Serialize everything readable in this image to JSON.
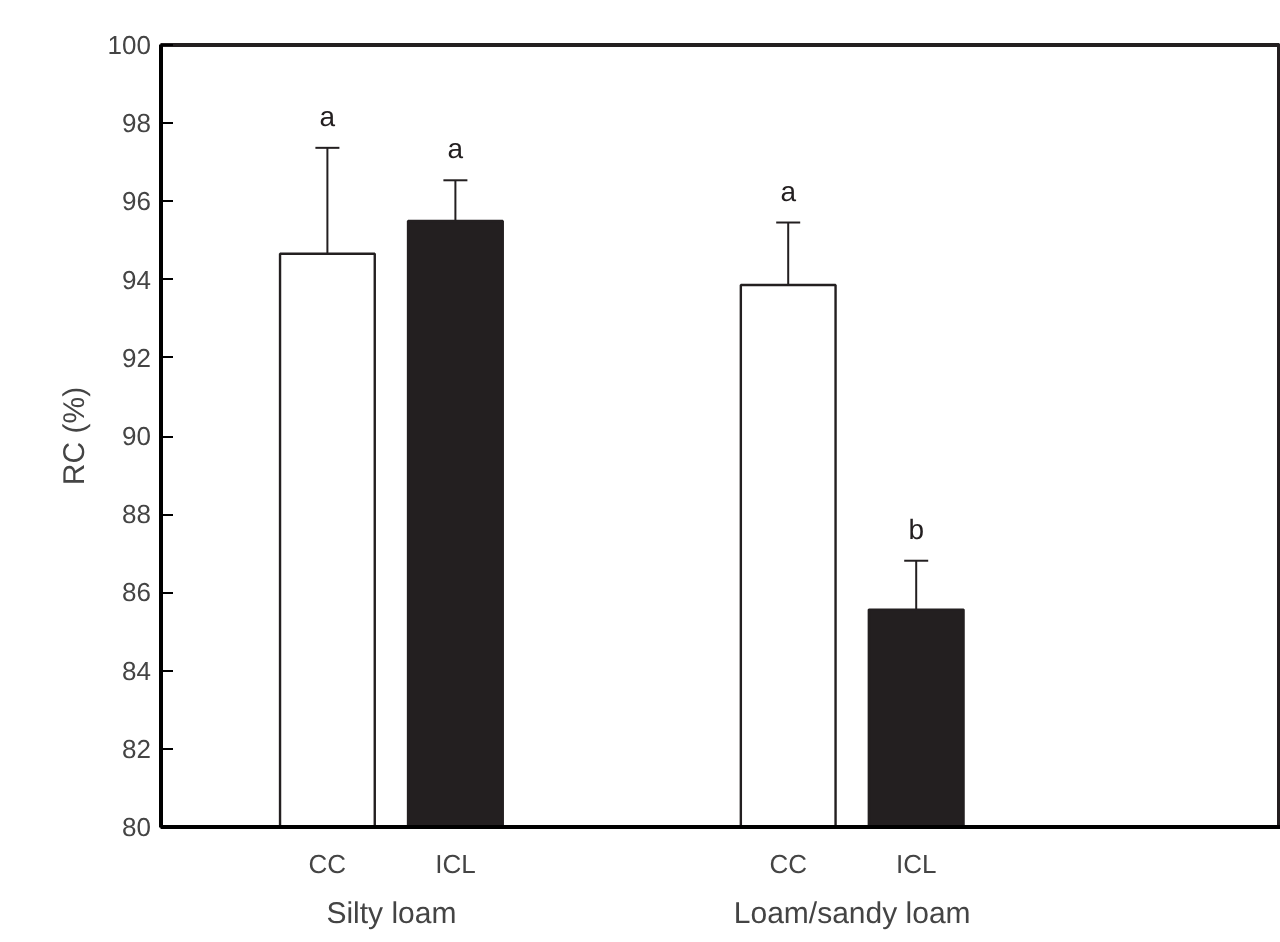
{
  "chart_data": {
    "type": "bar",
    "ylabel": "RC (%)",
    "categories": [
      "CC",
      "ICL",
      "CC",
      "ICL"
    ],
    "values": [
      94.66,
      95.5,
      93.86,
      85.56
    ],
    "colors": [
      "#ffffff",
      "#231f20",
      "#ffffff",
      "#231f20"
    ],
    "errors": [
      [
        94.66,
        97.37
      ],
      [
        95.5,
        96.54
      ],
      [
        93.86,
        95.46
      ],
      [
        85.56,
        86.81
      ]
    ],
    "ylim": [
      80,
      100
    ],
    "yticks": [
      80,
      82,
      84,
      86,
      88,
      90,
      92,
      94,
      96,
      98,
      100
    ],
    "annotations": [
      "a",
      "a",
      "a",
      "b",
      "Silty loam",
      "Loam/sandy loam"
    ]
  }
}
